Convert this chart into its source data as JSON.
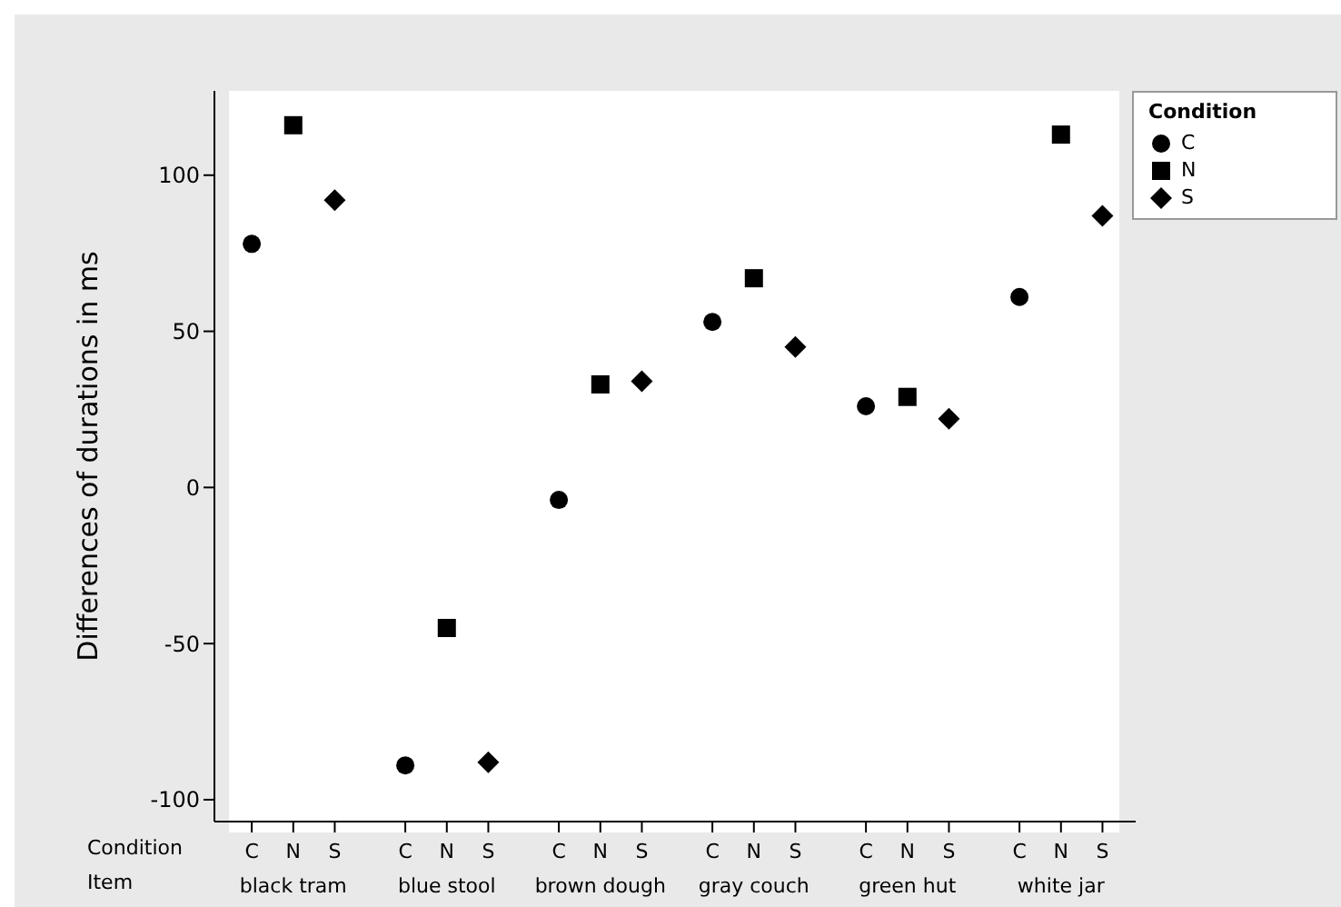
{
  "chart_data": {
    "type": "scatter",
    "ylabel": "Differences of durations in ms",
    "legend_title": "Condition",
    "legend": "top right",
    "grid": false,
    "categories": [
      "C",
      "N",
      "S",
      "C",
      "N",
      "S",
      "C",
      "N",
      "S",
      "C",
      "N",
      "S",
      "C",
      "N",
      "S",
      "C",
      "N",
      "S"
    ],
    "annotations": [
      "Condition",
      "Item",
      "black tram",
      "blue stool",
      "brown dough",
      "gray couch",
      "green hut",
      "white jar"
    ],
    "ylim": [
      -107,
      127
    ],
    "yticks": [
      -100,
      -50,
      0,
      50,
      100
    ],
    "series": [
      {
        "name": "C",
        "color": "#000000",
        "marker": "circle",
        "values": [
          78,
          null,
          null,
          -89,
          null,
          null,
          -4,
          null,
          null,
          53,
          null,
          null,
          26,
          null,
          null,
          61,
          null,
          null
        ]
      },
      {
        "name": "N",
        "color": "#000000",
        "marker": "square",
        "values": [
          null,
          116,
          null,
          null,
          -45,
          null,
          null,
          33,
          null,
          null,
          67,
          null,
          null,
          29,
          null,
          null,
          113,
          null
        ]
      },
      {
        "name": "S",
        "color": "#000000",
        "marker": "diamond",
        "values": [
          null,
          null,
          92,
          null,
          null,
          -88,
          null,
          null,
          34,
          null,
          null,
          45,
          null,
          null,
          22,
          null,
          null,
          87
        ]
      }
    ]
  }
}
